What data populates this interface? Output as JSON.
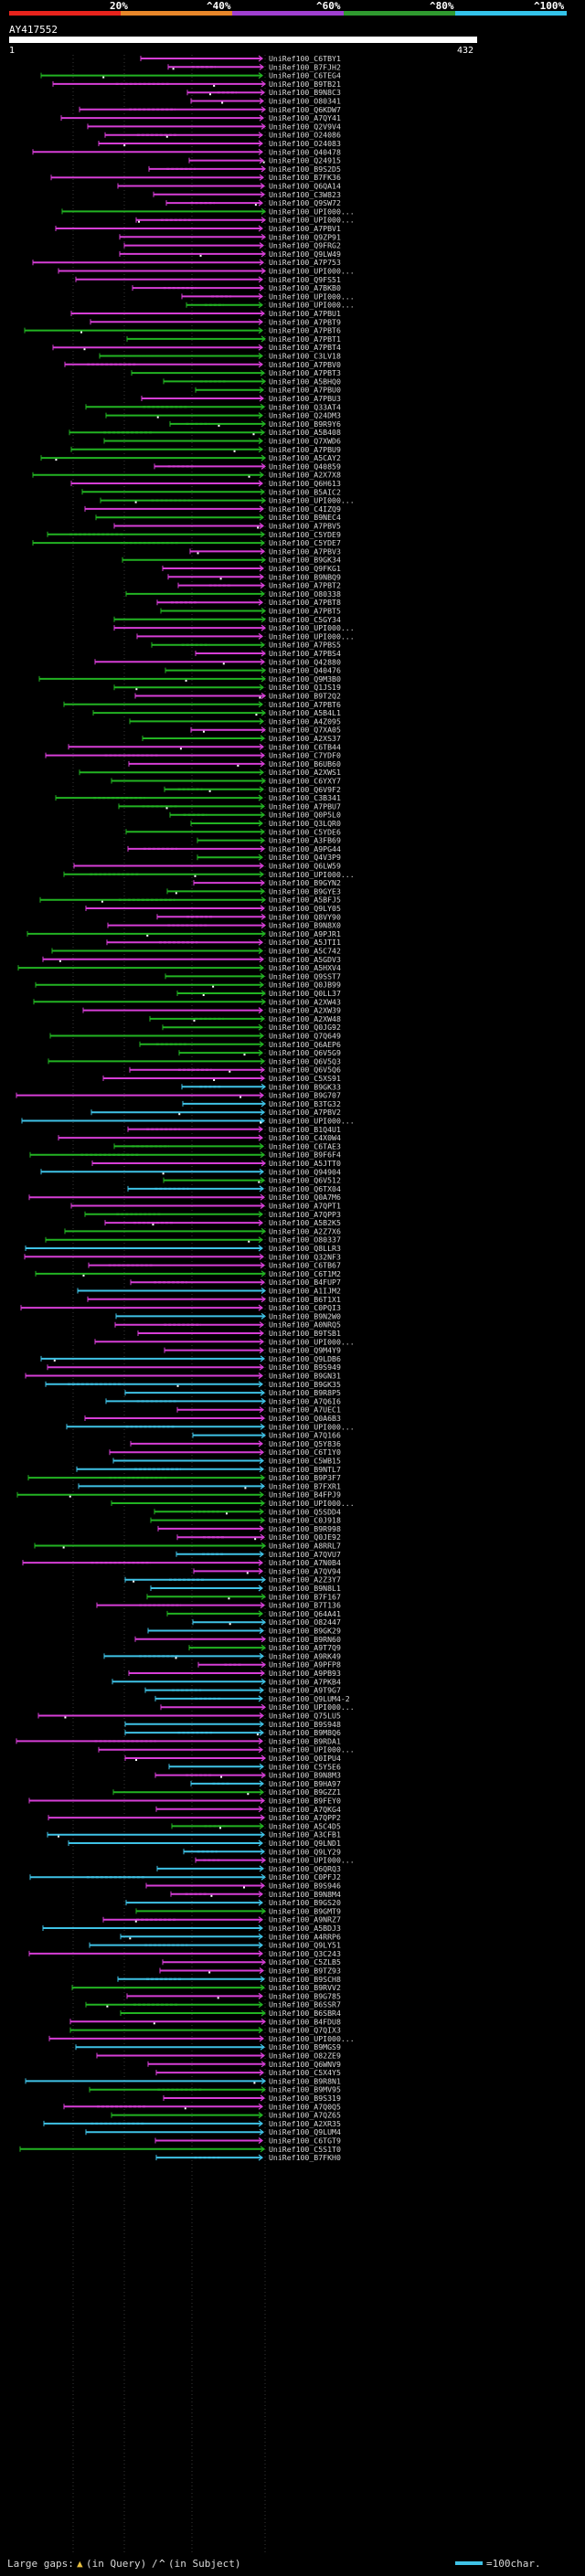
{
  "colors": {
    "background": "#000000",
    "magenta": "#d63ed6",
    "green": "#22b322",
    "cyan": "#3fc2e6",
    "label": "#d8d8d8",
    "grid": "#5a5a5a"
  },
  "legend": {
    "stops": [
      {
        "label": "20%",
        "color": "#e8231c"
      },
      {
        "label": "^40%",
        "color": "#e8872a"
      },
      {
        "label": "^60%",
        "color": "#9f3fd0"
      },
      {
        "label": "^80%",
        "color": "#2f9a2f"
      },
      {
        "label": "^100%",
        "color": "#33c3ea"
      }
    ]
  },
  "query": {
    "name": "AY417552",
    "start": "1",
    "end": "432",
    "length": 432
  },
  "footer": {
    "gaps_label": "Large gaps:",
    "gap_query": "(in Query)",
    "gap_sep": "/",
    "gap_subject": "(in Subject)",
    "scale_label": "=100char."
  },
  "hits": [
    "UniRef100_C6TBY1",
    "UniRef100_B7FJH2",
    "UniRef100_C6TEG4",
    "UniRef100_B9TB21",
    "UniRef100_B9N8C3",
    "UniRef100_O80341",
    "UniRef100_Q6KDW7",
    "UniRef100_A7QY41",
    "UniRef100_Q2V9V4",
    "UniRef100_O24086",
    "UniRef100_O24083",
    "UniRef100_Q40478",
    "UniRef100_Q24915",
    "UniRef100_B9S2D5",
    "UniRef100_B7FK36",
    "UniRef100_Q6QA14",
    "UniRef100_C3W823",
    "UniRef100_Q9SW72",
    "UniRef100_UPI000...",
    "UniRef100_UPI000...",
    "UniRef100_A7PBV1",
    "UniRef100_Q9ZP91",
    "UniRef100_Q9FRG2",
    "UniRef100_Q9LW49",
    "UniRef100_A7P753",
    "UniRef100_UPI000...",
    "UniRef100_Q9FS51",
    "UniRef100_A7BKB0",
    "UniRef100_UPI000...",
    "UniRef100_UPI000...",
    "UniRef100_A7PBU1",
    "UniRef100_A7PBT9",
    "UniRef100_A7PBT6",
    "UniRef100_A7PBT1",
    "UniRef100_A7PBT4",
    "UniRef100_C3LV18",
    "UniRef100_A7PBV0",
    "UniRef100_A7PBT3",
    "UniRef100_A5BHQ0",
    "UniRef100_A7PBU0",
    "UniRef100_A7PBU3",
    "UniRef100_Q33AT4",
    "UniRef100_Q24DM3",
    "UniRef100_B9R9Y6",
    "UniRef100_A5B408",
    "UniRef100_Q7XWD6",
    "UniRef100_A7PBU9",
    "UniRef100_A5CAY2",
    "UniRef100_Q40859",
    "UniRef100_A2X7X8",
    "UniRef100_Q6H613",
    "UniRef100_B5AIC2",
    "UniRef100_UPI000...",
    "UniRef100_C4IZQ9",
    "UniRef100_B9NEC4",
    "UniRef100_A7PBV5",
    "UniRef100_C5YDE9",
    "UniRef100_C5YDE7",
    "UniRef100_A7PBV3",
    "UniRef100_B9GK34",
    "UniRef100_Q9FKG1",
    "UniRef100_B9NBQ9",
    "UniRef100_A7PBT2",
    "UniRef100_O80338",
    "UniRef100_A7PBT8",
    "UniRef100_A7PBT5",
    "UniRef100_C5GY34",
    "UniRef100_UPI000...",
    "UniRef100_UPI000...",
    "UniRef100_A7PBS5",
    "UniRef100_A7PBS4",
    "UniRef100_Q42880",
    "UniRef100_Q40476",
    "UniRef100_Q9M3B0",
    "UniRef100_Q1JS19",
    "UniRef100_B9T2Q2",
    "UniRef100_A7PBT6",
    "UniRef100_A5B4L1",
    "UniRef100_A4Z095",
    "UniRef100_Q7XA05",
    "UniRef100_A2XS37",
    "UniRef100_C6TB44",
    "UniRef100_C7YDF0",
    "UniRef100_B6UB60",
    "UniRef100_A2XWS1",
    "UniRef100_C6YXY7",
    "UniRef100_Q6V9F2",
    "UniRef100_C3B341",
    "UniRef100_A7PBU7",
    "UniRef100_Q0P5L0",
    "UniRef100_Q3LQR0",
    "UniRef100_C5YDE6",
    "UniRef100_A3FB69",
    "UniRef100_A9PG44",
    "UniRef100_Q4V3P9",
    "UniRef100_Q6LW59",
    "UniRef100_UPI000...",
    "UniRef100_B9GYN2",
    "UniRef100_B9GYE3",
    "UniRef100_A5BFJ5",
    "UniRef100_Q9LY05",
    "UniRef100_Q8VY90",
    "UniRef100_B9N8X0",
    "UniRef100_A9PJR1",
    "UniRef100_A5JTI1",
    "UniRef100_A5C742",
    "UniRef100_A5GDV3",
    "UniRef100_A5HXV4",
    "UniRef100_Q9SST7",
    "UniRef100_Q0JB99",
    "UniRef100_Q0LL37",
    "UniRef100_A2XW43",
    "UniRef100_A2XW39",
    "UniRef100_A2XW48",
    "UniRef100_Q0JG92",
    "UniRef100_Q7Q649",
    "UniRef100_Q6AEP6",
    "UniRef100_Q6V5G9",
    "UniRef100_Q6V5Q3",
    "UniRef100_Q6V5Q6",
    "UniRef100_C5XS91",
    "UniRef100_B9GK33",
    "UniRef100_B9G707",
    "UniRef100_B3TG32",
    "UniRef100_A7PBV2",
    "UniRef100_UPI000...",
    "UniRef100_B1Q4U1",
    "UniRef100_C4X0W4",
    "UniRef100_C6TAE3",
    "UniRef100_B9F6F4",
    "UniRef100_A5JTT0",
    "UniRef100_Q94904",
    "UniRef100_Q6V512",
    "UniRef100_Q6TX04",
    "UniRef100_Q0A7M6",
    "UniRef100_A7QPT1",
    "UniRef100_A7QPP3",
    "UniRef100_A5B2K5",
    "UniRef100_A2Z7X6",
    "UniRef100_O80337",
    "UniRef100_Q8LLR3",
    "UniRef100_Q32NF3",
    "UniRef100_C6TB67",
    "UniRef100_C6T1M2",
    "UniRef100_B4FUP7",
    "UniRef100_A1IJM2",
    "UniRef100_B6T1X1",
    "UniRef100_C0PQI3",
    "UniRef100_B9N2W0",
    "UniRef100_A0NRQ5",
    "UniRef100_B9TSB1",
    "UniRef100_UPI000...",
    "UniRef100_Q9M4Y9",
    "UniRef100_Q9LDB6",
    "UniRef100_B9S949",
    "UniRef100_B9GN31",
    "UniRef100_B9GK35",
    "UniRef100_B9R8P5",
    "UniRef100_A7Q6I6",
    "UniRef100_A7UEC1",
    "UniRef100_Q0A6B3",
    "UniRef100_UPI000...",
    "UniRef100_A7Q166",
    "UniRef100_Q5Y836",
    "UniRef100_C6T1Y0",
    "UniRef100_C5WB15",
    "UniRef100_B9NTL7",
    "UniRef100_B9P3F7",
    "UniRef100_B7FXR1",
    "UniRef100_B4FPJ9",
    "UniRef100_UPI000...",
    "UniRef100_Q5SDD4",
    "UniRef100_C0J918",
    "UniRef100_B9R998",
    "UniRef100_Q0JE92",
    "UniRef100_A8RRL7",
    "UniRef100_A7QVU7",
    "UniRef100_A7N0B4",
    "UniRef100_A7QV94",
    "UniRef100_A2Z3Y7",
    "UniRef100_B9N8L1",
    "UniRef100_B7F167",
    "UniRef100_B7T136",
    "UniRef100_Q64A41",
    "UniRef100_O82447",
    "UniRef100_B9GK29",
    "UniRef100_B9RN60",
    "UniRef100_A9T7Q9",
    "UniRef100_A9RK49",
    "UniRef100_A9PFP8",
    "UniRef100_A9PB93",
    "UniRef100_A7PKB4",
    "UniRef100_A9T9G7",
    "UniRef100_Q9LUM4-2",
    "UniRef100_UPI000...",
    "UniRef100_Q75LU5",
    "UniRef100_B9S948",
    "UniRef100_B9M8Q6",
    "UniRef100_B9RDA1",
    "UniRef100_UPI000...",
    "UniRef100_Q0IPU4",
    "UniRef100_C5Y5E6",
    "UniRef100_B9N8M3",
    "UniRef100_B9HA97",
    "UniRef100_B9GZZ1",
    "UniRef100_B9FEY0",
    "UniRef100_A7QKG4",
    "UniRef100_A7QPP2",
    "UniRef100_A5C4D5",
    "UniRef100_A3CFB1",
    "UniRef100_Q9LND1",
    "UniRef100_Q9LY29",
    "UniRef100_UPI000...",
    "UniRef100_Q6QRQ3",
    "UniRef100_C0PFJ2",
    "UniRef100_B9S946",
    "UniRef100_B9N8M4",
    "UniRef100_B9GS20",
    "UniRef100_B9GMT9",
    "UniRef100_A9NRZ7",
    "UniRef100_A5BDJ3",
    "UniRef100_A4RRP6",
    "UniRef100_Q9LY51",
    "UniRef100_Q3C243",
    "UniRef100_C5ZLB5",
    "UniRef100_B9TZ93",
    "UniRef100_B9SCH8",
    "UniRef100_B9RVV2",
    "UniRef100_B9G785",
    "UniRef100_B6SSR7",
    "UniRef100_B6SBR4",
    "UniRef100_B4FDU8",
    "UniRef100_Q7QIX3",
    "UniRef100_UPI000...",
    "UniRef100_B9MGS9",
    "UniRef100_O82ZE9",
    "UniRef100_Q6WNV9",
    "UniRef100_C5X4Y5",
    "UniRef100_B9R8N1",
    "UniRef100_B9MV95",
    "UniRef100_B9S319",
    "UniRef100_A7Q0Q5",
    "UniRef100_A7QZ65",
    "UniRef100_A2XR35",
    "UniRef100_Q9LUM4",
    "UniRef100_C6TGT9",
    "UniRef100_C5S1T0",
    "UniRef100_B7FKH0"
  ]
}
